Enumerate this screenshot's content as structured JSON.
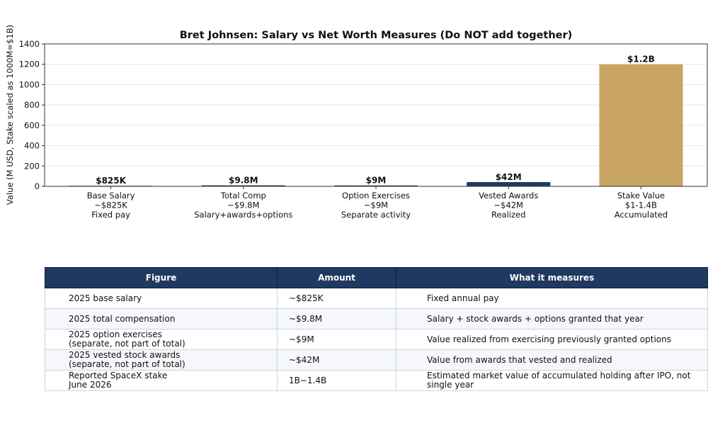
{
  "chart_data": {
    "type": "bar",
    "title": "Bret Johnsen: Salary vs Net Worth Measures (Do NOT add together)",
    "xlabel": "",
    "ylabel": "Value (M USD, Stake scaled as 1000M=$1B)",
    "ylim": [
      0,
      1400
    ],
    "yticks": [
      0,
      200,
      400,
      600,
      800,
      1000,
      1200,
      1400
    ],
    "grid": "y",
    "categories": [
      "Base Salary\n~$825K\nFixed pay",
      "Total Comp\n~$9.8M\nSalary+awards+options",
      "Option Exercises\n~$9M\nSeparate activity",
      "Vested Awards\n~$42M\nRealized",
      "Stake Value\n$1-1.4B\nAccumulated"
    ],
    "values": [
      0.825,
      9.8,
      9,
      42,
      1200
    ],
    "data_labels": [
      "$825K",
      "$9.8M",
      "$9M",
      "$42M",
      "$1.2B"
    ],
    "colors": [
      "#1f3a60",
      "#1f3a60",
      "#1f3a60",
      "#1f3a60",
      "#c8a463"
    ]
  },
  "table": {
    "headers": [
      "Figure",
      "Amount",
      "What it measures"
    ],
    "rows": [
      [
        "2025 base salary",
        "~$825K",
        "Fixed annual pay"
      ],
      [
        "2025 total compensation",
        "~$9.8M",
        "Salary + stock awards + options granted that year"
      ],
      [
        "2025 option exercises\n(separate, not part of total)",
        "~$9M",
        "Value realized from exercising previously granted options"
      ],
      [
        "2025 vested stock awards\n(separate, not part of total)",
        "~$42M",
        "Value from awards that vested and realized"
      ],
      [
        "Reported SpaceX stake\nJune 2026",
        "1B−1.4B",
        "Estimated market value of accumulated holding after IPO, not single year"
      ]
    ]
  }
}
